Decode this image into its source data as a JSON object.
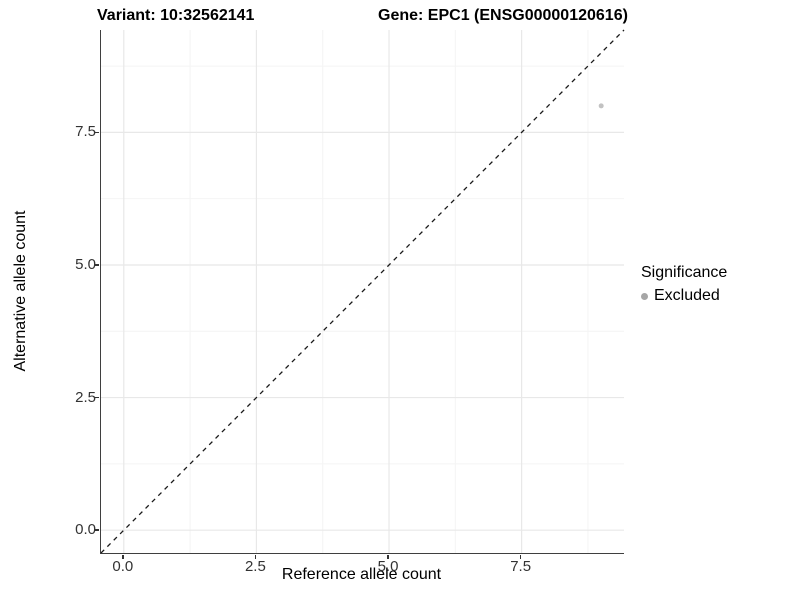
{
  "chart_data": {
    "type": "scatter",
    "titles": {
      "left": "Variant: 10:32562141",
      "right": "Gene: EPC1 (ENSG00000120616)"
    },
    "xlabel": "Reference allele count",
    "ylabel": "Alternative allele count",
    "xlim": [
      -0.43,
      9.43
    ],
    "ylim": [
      -0.43,
      9.43
    ],
    "xticks": [
      0.0,
      2.5,
      5.0,
      7.5
    ],
    "yticks": [
      0.0,
      2.5,
      5.0,
      7.5
    ],
    "tick_label_format": "one_decimal",
    "grid": {
      "major": true,
      "minor": true,
      "major_color": "#e8e8e8",
      "minor_color": "#f4f4f4"
    },
    "reference_line": {
      "style": "dashed",
      "slope": 1,
      "intercept": 0,
      "color": "#1a1a1a"
    },
    "series": [
      {
        "name": "Excluded",
        "color": "#c2c2c2",
        "point_radius": 2.5,
        "points": [
          {
            "x": 9,
            "y": 8
          }
        ]
      }
    ],
    "legend": {
      "title": "Significance",
      "position": "right",
      "entries": [
        {
          "label": "Excluded",
          "color": "#a6a6a6"
        }
      ]
    }
  },
  "colors": {
    "axis_line": "#3f3f3f",
    "tick_mark": "#333333",
    "tick_label": "#333333",
    "background": "#ffffff"
  }
}
